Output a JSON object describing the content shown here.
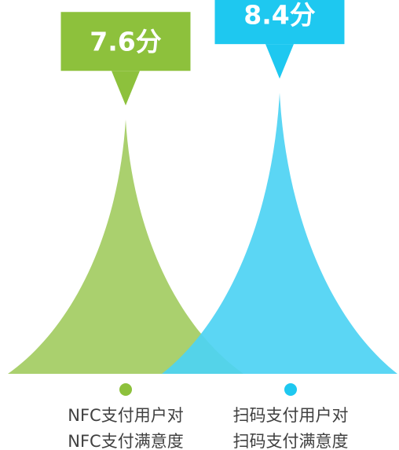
{
  "chart_data": {
    "type": "bar",
    "style": "pictorial-peak",
    "categories": [
      [
        "NFC支付用户对",
        "NFC支付满意度"
      ],
      [
        "扫码支付用户对",
        "扫码支付满意度"
      ]
    ],
    "values": [
      7.6,
      8.4
    ],
    "data_labels": [
      "7.6分",
      "8.4分"
    ],
    "ylim": [
      0,
      10
    ],
    "grid": false,
    "legend": false,
    "colors": [
      "#8dc13c",
      "#1ec8f0"
    ],
    "peak_colors": [
      "#a3cc62",
      "#4dd2f3"
    ]
  }
}
